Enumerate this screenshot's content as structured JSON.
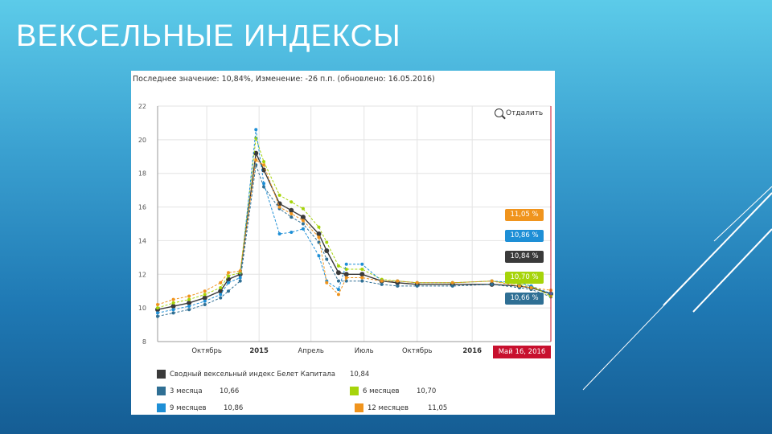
{
  "slide": {
    "title": "ВЕКСЕЛЬНЫЕ ИНДЕКСЫ"
  },
  "chart_header": "Последнее значение: 10,84%, Изменение: -26 п.п. (обновлено: 16.05.2016)",
  "zoom_label": "Отдалить",
  "date_badge": "Май 16, 2016",
  "badges": [
    {
      "label": "11,05 %",
      "color": "#f0941d"
    },
    {
      "label": "10,86 %",
      "color": "#1e8fd6"
    },
    {
      "label": "10,84 %",
      "color": "#3a3a3a"
    },
    {
      "label": "10,70 %",
      "color": "#a6d40a"
    },
    {
      "label": "10,66 %",
      "color": "#2f6f94"
    }
  ],
  "legend": [
    {
      "label": "Сводный вексельный индекс Белет Капитала",
      "value": "10,84",
      "color": "#3a3a3a"
    },
    {
      "label": "3 месяца",
      "value": "10,66",
      "color": "#2f6f94"
    },
    {
      "label": "6 месяцев",
      "value": "10,70",
      "color": "#a6d40a"
    },
    {
      "label": "9 месяцев",
      "value": "10,86",
      "color": "#1e8fd6"
    },
    {
      "label": "12 месяцев",
      "value": "11,05",
      "color": "#f0941d"
    }
  ],
  "chart_data": {
    "type": "line",
    "title": "",
    "ylim": [
      8,
      22
    ],
    "y_ticks": [
      "8",
      "10",
      "12",
      "14",
      "16",
      "18",
      "20",
      "22"
    ],
    "x_ticks": [
      {
        "label": "Октябрь",
        "t": 0.125,
        "bold": false
      },
      {
        "label": "2015",
        "t": 0.258,
        "bold": true
      },
      {
        "label": "Апрель",
        "t": 0.39,
        "bold": false
      },
      {
        "label": "Июль",
        "t": 0.525,
        "bold": false
      },
      {
        "label": "Октябрь",
        "t": 0.66,
        "bold": false
      },
      {
        "label": "2016",
        "t": 0.8,
        "bold": true
      }
    ],
    "grid": true,
    "series": [
      {
        "name": "Сводный вексельный индекс Белет Капитала",
        "color": "#3a3a3a",
        "points": [
          [
            0.0,
            9.9
          ],
          [
            0.04,
            10.1
          ],
          [
            0.08,
            10.3
          ],
          [
            0.12,
            10.6
          ],
          [
            0.16,
            11.0
          ],
          [
            0.18,
            11.7
          ],
          [
            0.21,
            12.0
          ],
          [
            0.25,
            19.2
          ],
          [
            0.27,
            18.2
          ],
          [
            0.31,
            16.2
          ],
          [
            0.34,
            15.8
          ],
          [
            0.37,
            15.4
          ],
          [
            0.41,
            14.4
          ],
          [
            0.43,
            13.4
          ],
          [
            0.46,
            12.1
          ],
          [
            0.48,
            12.0
          ],
          [
            0.52,
            12.0
          ],
          [
            0.57,
            11.6
          ],
          [
            0.61,
            11.5
          ],
          [
            0.66,
            11.4
          ],
          [
            0.75,
            11.4
          ],
          [
            0.85,
            11.4
          ],
          [
            0.92,
            11.3
          ],
          [
            0.95,
            11.2
          ],
          [
            1.0,
            10.84
          ]
        ]
      },
      {
        "name": "3 месяца",
        "color": "#2f6f94",
        "points": [
          [
            0.0,
            9.5
          ],
          [
            0.04,
            9.7
          ],
          [
            0.08,
            9.9
          ],
          [
            0.12,
            10.2
          ],
          [
            0.16,
            10.6
          ],
          [
            0.18,
            11.0
          ],
          [
            0.21,
            11.6
          ],
          [
            0.25,
            18.5
          ],
          [
            0.27,
            17.2
          ],
          [
            0.31,
            15.9
          ],
          [
            0.34,
            15.4
          ],
          [
            0.37,
            15.0
          ],
          [
            0.41,
            13.9
          ],
          [
            0.43,
            12.9
          ],
          [
            0.46,
            11.6
          ],
          [
            0.48,
            11.6
          ],
          [
            0.52,
            11.6
          ],
          [
            0.57,
            11.4
          ],
          [
            0.61,
            11.3
          ],
          [
            0.66,
            11.3
          ],
          [
            0.75,
            11.3
          ],
          [
            0.85,
            11.4
          ],
          [
            0.92,
            11.2
          ],
          [
            0.95,
            11.1
          ],
          [
            1.0,
            10.66
          ]
        ]
      },
      {
        "name": "6 месяцев",
        "color": "#a6d40a",
        "points": [
          [
            0.0,
            10.0
          ],
          [
            0.04,
            10.3
          ],
          [
            0.08,
            10.5
          ],
          [
            0.12,
            10.8
          ],
          [
            0.16,
            11.2
          ],
          [
            0.18,
            11.9
          ],
          [
            0.21,
            12.1
          ],
          [
            0.25,
            20.1
          ],
          [
            0.27,
            18.7
          ],
          [
            0.31,
            16.7
          ],
          [
            0.34,
            16.3
          ],
          [
            0.37,
            15.9
          ],
          [
            0.41,
            14.8
          ],
          [
            0.43,
            13.9
          ],
          [
            0.46,
            12.5
          ],
          [
            0.48,
            12.3
          ],
          [
            0.52,
            12.3
          ],
          [
            0.57,
            11.7
          ],
          [
            0.61,
            11.6
          ],
          [
            0.66,
            11.5
          ],
          [
            0.75,
            11.5
          ],
          [
            0.85,
            11.6
          ],
          [
            0.92,
            11.4
          ],
          [
            0.95,
            11.3
          ],
          [
            1.0,
            10.7
          ]
        ]
      },
      {
        "name": "9 месяцев",
        "color": "#1e8fd6",
        "points": [
          [
            0.0,
            9.7
          ],
          [
            0.04,
            9.9
          ],
          [
            0.08,
            10.1
          ],
          [
            0.12,
            10.4
          ],
          [
            0.16,
            10.8
          ],
          [
            0.18,
            11.5
          ],
          [
            0.21,
            11.8
          ],
          [
            0.25,
            20.6
          ],
          [
            0.27,
            17.4
          ],
          [
            0.31,
            14.4
          ],
          [
            0.34,
            14.5
          ],
          [
            0.37,
            14.7
          ],
          [
            0.41,
            13.1
          ],
          [
            0.43,
            11.6
          ],
          [
            0.46,
            11.1
          ],
          [
            0.48,
            12.6
          ],
          [
            0.52,
            12.6
          ],
          [
            0.57,
            11.6
          ],
          [
            0.61,
            11.6
          ],
          [
            0.66,
            11.5
          ],
          [
            0.75,
            11.5
          ],
          [
            0.85,
            11.6
          ],
          [
            0.92,
            11.5
          ],
          [
            0.95,
            11.3
          ],
          [
            1.0,
            10.86
          ]
        ]
      },
      {
        "name": "12 месяцев",
        "color": "#f0941d",
        "points": [
          [
            0.0,
            10.2
          ],
          [
            0.04,
            10.5
          ],
          [
            0.08,
            10.7
          ],
          [
            0.12,
            11.0
          ],
          [
            0.16,
            11.5
          ],
          [
            0.18,
            12.1
          ],
          [
            0.21,
            12.2
          ],
          [
            0.25,
            18.8
          ],
          [
            0.27,
            18.5
          ],
          [
            0.31,
            16.0
          ],
          [
            0.34,
            15.6
          ],
          [
            0.37,
            15.2
          ],
          [
            0.41,
            14.2
          ],
          [
            0.43,
            11.5
          ],
          [
            0.46,
            10.8
          ],
          [
            0.48,
            11.8
          ],
          [
            0.52,
            11.8
          ],
          [
            0.57,
            11.6
          ],
          [
            0.61,
            11.6
          ],
          [
            0.66,
            11.5
          ],
          [
            0.75,
            11.5
          ],
          [
            0.85,
            11.6
          ],
          [
            0.92,
            11.3
          ],
          [
            0.95,
            11.2
          ],
          [
            1.0,
            11.05
          ]
        ]
      }
    ]
  }
}
